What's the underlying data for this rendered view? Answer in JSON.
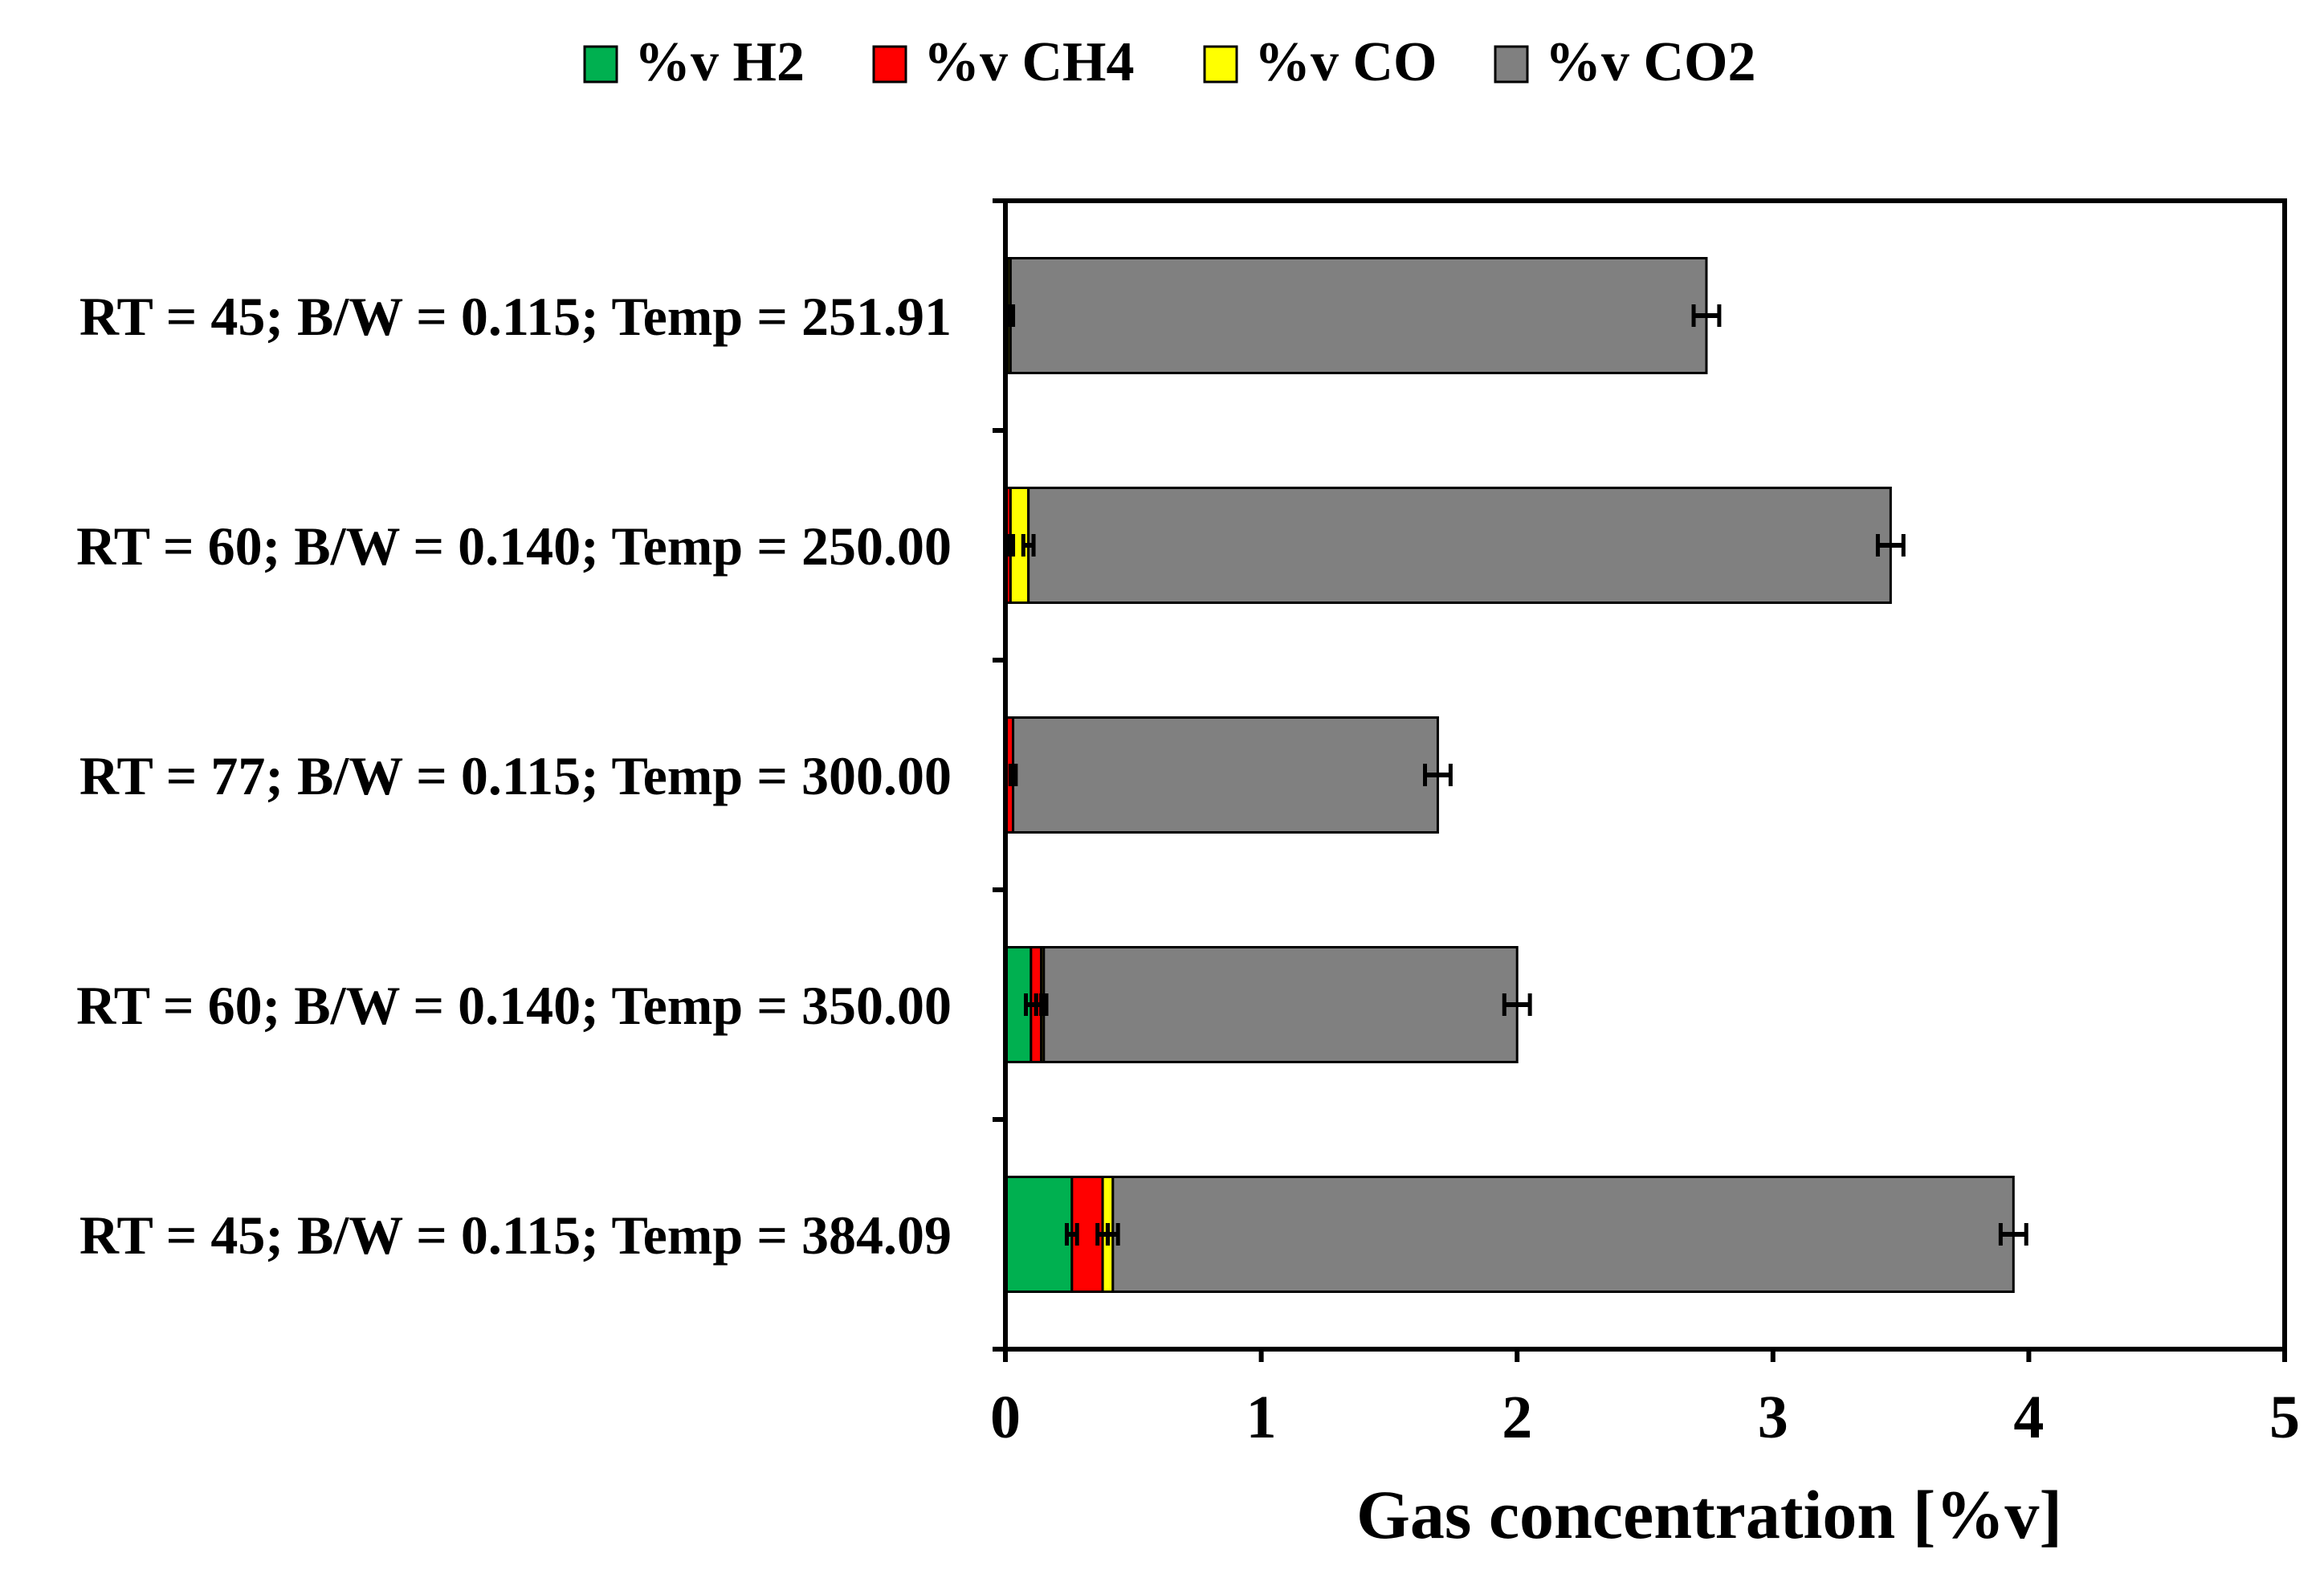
{
  "chart_data": {
    "type": "bar",
    "orientation": "horizontal",
    "stacked": true,
    "title": "",
    "xlabel": "Gas concentration [%v]",
    "ylabel": "",
    "xlim": [
      0,
      5
    ],
    "x_ticks": [
      0,
      1,
      2,
      3,
      4,
      5
    ],
    "grid": false,
    "legend_position": "top",
    "categories": [
      "RT = 45; B/W = 0.115; Temp = 251.91",
      "RT = 60; B/W = 0.140; Temp = 250.00",
      "RT = 77; B/W = 0.115; Temp = 300.00",
      "RT = 60; B/W = 0.140; Temp = 350.00",
      "RT = 45; B/W = 0.115; Temp = 384.09"
    ],
    "series": [
      {
        "name": "%v H2",
        "color": "#00b050",
        "values": [
          0.0,
          0.0,
          0.0,
          0.1,
          0.26
        ],
        "errors": [
          0.0,
          0.0,
          0.0,
          0.02,
          0.02
        ]
      },
      {
        "name": "%v CH4",
        "color": "#ff0000",
        "values": [
          0.01,
          0.02,
          0.03,
          0.04,
          0.12
        ],
        "errors": [
          0.01,
          0.01,
          0.01,
          0.02,
          0.02
        ]
      },
      {
        "name": "%v CO",
        "color": "#ffff00",
        "values": [
          0.01,
          0.07,
          0.0,
          0.01,
          0.04
        ],
        "errors": [
          0.01,
          0.02,
          0.01,
          0.01,
          0.02
        ]
      },
      {
        "name": "%v CO2",
        "color": "#808080",
        "values": [
          2.72,
          3.37,
          1.66,
          1.85,
          3.52
        ],
        "errors": [
          0.05,
          0.05,
          0.05,
          0.05,
          0.05
        ]
      }
    ]
  }
}
